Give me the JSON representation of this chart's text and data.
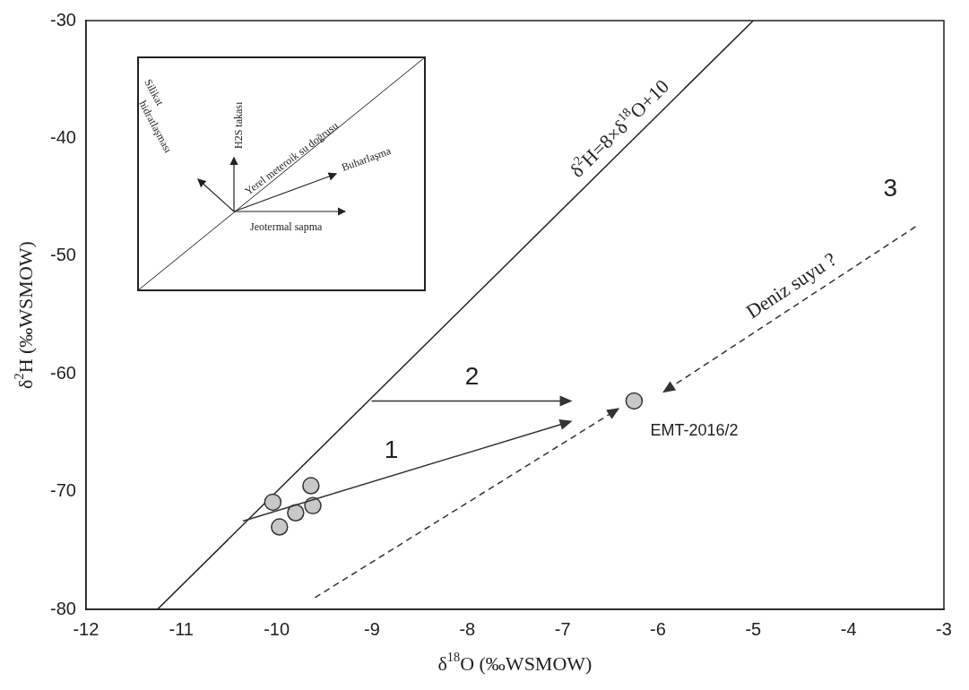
{
  "chart_data": {
    "type": "scatter",
    "xlabel": "δ$^{18}$O (‰WSMOW)",
    "ylabel": "δ$^{2}$H (‰WSMOW)",
    "xlim": [
      -12,
      -3
    ],
    "xticks": [
      -12,
      -11,
      -10,
      -9,
      -8,
      -7,
      -6,
      -5,
      -4,
      -3
    ],
    "ylim": [
      -80,
      -30
    ],
    "yticks": [
      -80,
      -70,
      -60,
      -50,
      -40,
      -30
    ],
    "grid": false,
    "legend": false,
    "series": [
      {
        "marker": "circle",
        "color": "#c8c8c8",
        "x": [
          -10.04,
          -9.64,
          -9.62,
          -9.8,
          -9.97,
          -6.25
        ],
        "values": [
          -70.9,
          -69.5,
          -71.2,
          -71.8,
          -73.0,
          -62.3
        ]
      },
      {
        "type": "line",
        "color": "#222222",
        "line_style": "solid",
        "x": [
          -11.25,
          -5
        ],
        "values": [
          -80,
          -30
        ]
      }
    ],
    "annotations": [
      {
        "text": "δ$^{2}$H=8×δ$^{18}$O+10",
        "x": -6.3,
        "y": -40
      },
      {
        "text": "EMT-2016/2",
        "x": -6.25,
        "y": -62.3
      },
      "1",
      "2",
      "3",
      "Deniz suyu ?",
      "Silikat hidratlaşması",
      "H2S takası",
      "Yerel meteroik su doğrusu",
      "Buharlaşma",
      "Jeotermal sapma"
    ]
  }
}
